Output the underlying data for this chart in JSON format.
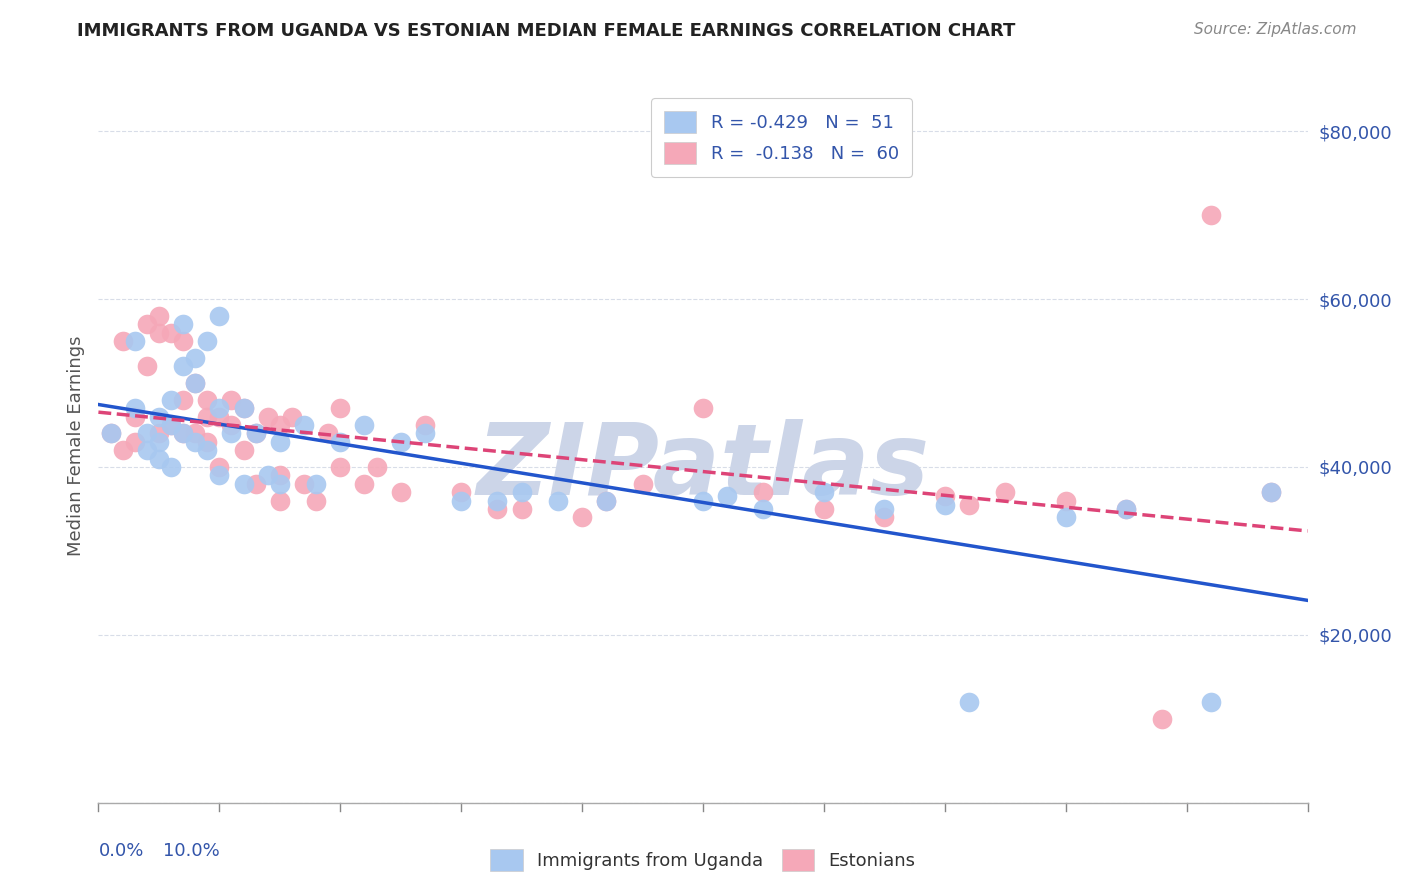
{
  "title": "IMMIGRANTS FROM UGANDA VS ESTONIAN MEDIAN FEMALE EARNINGS CORRELATION CHART",
  "source": "Source: ZipAtlas.com",
  "ylabel": "Median Female Earnings",
  "yticks": [
    0,
    20000,
    40000,
    60000,
    80000
  ],
  "ytick_labels": [
    "",
    "$20,000",
    "$40,000",
    "$60,000",
    "$80,000"
  ],
  "xmin": 0.0,
  "xmax": 10.0,
  "ymin": 0,
  "ymax": 85000,
  "series1_color": "#a8c8f0",
  "series2_color": "#f5a8b8",
  "line1_color": "#2255cc",
  "line2_color": "#dd4477",
  "watermark": "ZIPatlas",
  "watermark_color": "#ccd5e8",
  "background_color": "#ffffff",
  "grid_color": "#d8dde8",
  "title_color": "#222222",
  "axis_label_color": "#3355aa",
  "tick_label_color": "#3355aa",
  "series1_x": [
    0.1,
    0.3,
    0.3,
    0.4,
    0.4,
    0.5,
    0.5,
    0.5,
    0.6,
    0.6,
    0.6,
    0.7,
    0.7,
    0.7,
    0.8,
    0.8,
    0.8,
    0.9,
    0.9,
    1.0,
    1.0,
    1.0,
    1.1,
    1.2,
    1.2,
    1.3,
    1.4,
    1.5,
    1.5,
    1.7,
    1.8,
    2.0,
    2.2,
    2.5,
    2.7,
    3.0,
    3.3,
    3.5,
    3.8,
    4.2,
    5.0,
    5.2,
    5.5,
    6.0,
    6.5,
    7.0,
    7.2,
    8.0,
    8.5,
    9.2,
    9.7
  ],
  "series1_y": [
    44000,
    47000,
    55000,
    44000,
    42000,
    46000,
    43000,
    41000,
    48000,
    45000,
    40000,
    57000,
    52000,
    44000,
    53000,
    50000,
    43000,
    55000,
    42000,
    58000,
    47000,
    39000,
    44000,
    47000,
    38000,
    44000,
    39000,
    43000,
    38000,
    45000,
    38000,
    43000,
    45000,
    43000,
    44000,
    36000,
    36000,
    37000,
    36000,
    36000,
    36000,
    36500,
    35000,
    37000,
    35000,
    35500,
    12000,
    34000,
    35000,
    12000,
    37000
  ],
  "series2_x": [
    0.1,
    0.2,
    0.2,
    0.3,
    0.3,
    0.4,
    0.4,
    0.5,
    0.5,
    0.5,
    0.6,
    0.6,
    0.7,
    0.7,
    0.7,
    0.8,
    0.8,
    0.9,
    0.9,
    0.9,
    1.0,
    1.0,
    1.1,
    1.1,
    1.2,
    1.2,
    1.3,
    1.3,
    1.4,
    1.5,
    1.5,
    1.5,
    1.6,
    1.7,
    1.8,
    1.9,
    2.0,
    2.0,
    2.2,
    2.3,
    2.5,
    2.7,
    3.0,
    3.3,
    3.5,
    4.0,
    4.2,
    4.5,
    5.0,
    5.5,
    6.0,
    6.5,
    7.0,
    7.2,
    7.5,
    8.0,
    8.5,
    8.8,
    9.2,
    9.7
  ],
  "series2_y": [
    44000,
    55000,
    42000,
    46000,
    43000,
    57000,
    52000,
    58000,
    56000,
    44000,
    56000,
    45000,
    55000,
    48000,
    44000,
    50000,
    44000,
    48000,
    46000,
    43000,
    46000,
    40000,
    48000,
    45000,
    47000,
    42000,
    44000,
    38000,
    46000,
    45000,
    39000,
    36000,
    46000,
    38000,
    36000,
    44000,
    47000,
    40000,
    38000,
    40000,
    37000,
    45000,
    37000,
    35000,
    35000,
    34000,
    36000,
    38000,
    47000,
    37000,
    35000,
    34000,
    36500,
    35500,
    37000,
    36000,
    35000,
    10000,
    70000,
    37000
  ],
  "legend_label1": "R = -0.429   N =  51",
  "legend_label2": "R =  -0.138   N =  60",
  "bottom_legend_label1": "Immigrants from Uganda",
  "bottom_legend_label2": "Estonians"
}
